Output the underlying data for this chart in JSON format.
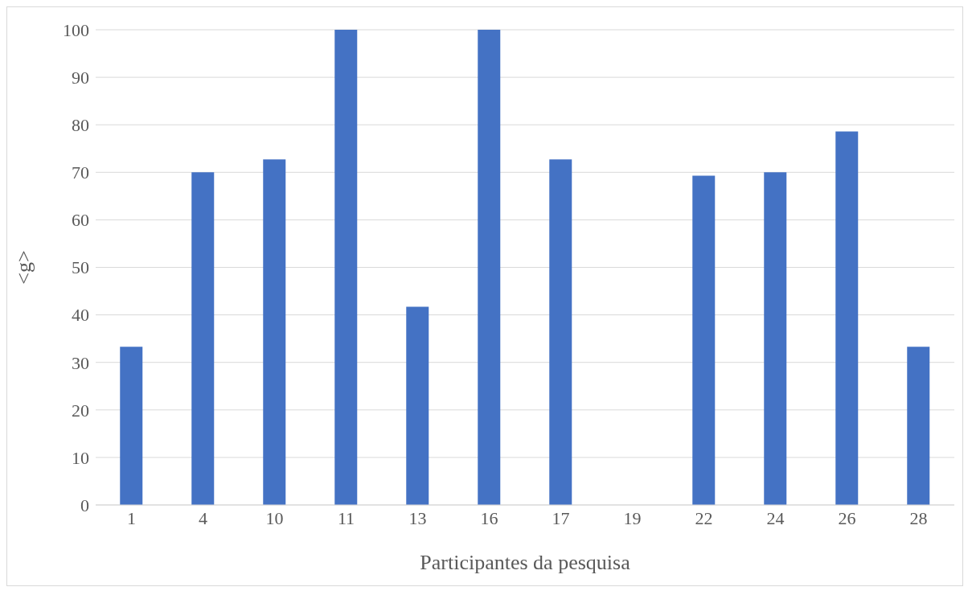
{
  "chart_data": {
    "type": "bar",
    "xlabel": "Participantes da pesquisa",
    "ylabel": "<g>",
    "categories": [
      "1",
      "4",
      "10",
      "11",
      "13",
      "16",
      "17",
      "19",
      "22",
      "24",
      "26",
      "28"
    ],
    "values": [
      33.3,
      70,
      72.7,
      100,
      41.7,
      100,
      72.7,
      0,
      69.3,
      70,
      78.6,
      33.3
    ],
    "color": "#4472c4",
    "ylim": [
      0,
      100
    ],
    "yticks": [
      0,
      10,
      20,
      30,
      40,
      50,
      60,
      70,
      80,
      90,
      100
    ],
    "grid": "y",
    "legend": false
  }
}
